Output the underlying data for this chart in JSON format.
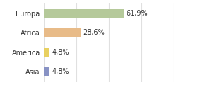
{
  "categories": [
    "Europa",
    "Africa",
    "America",
    "Asia"
  ],
  "values": [
    61.9,
    28.6,
    4.8,
    4.8
  ],
  "labels": [
    "61,9%",
    "28,6%",
    "4,8%",
    "4,8%"
  ],
  "bar_colors": [
    "#b5c99a",
    "#e8bb88",
    "#e8d060",
    "#8892c4"
  ],
  "xlim": [
    0,
    100
  ],
  "background_color": "#ffffff",
  "bar_height": 0.45,
  "label_fontsize": 7.0,
  "ytick_fontsize": 7.0,
  "grid_color": "#e0e0e0"
}
